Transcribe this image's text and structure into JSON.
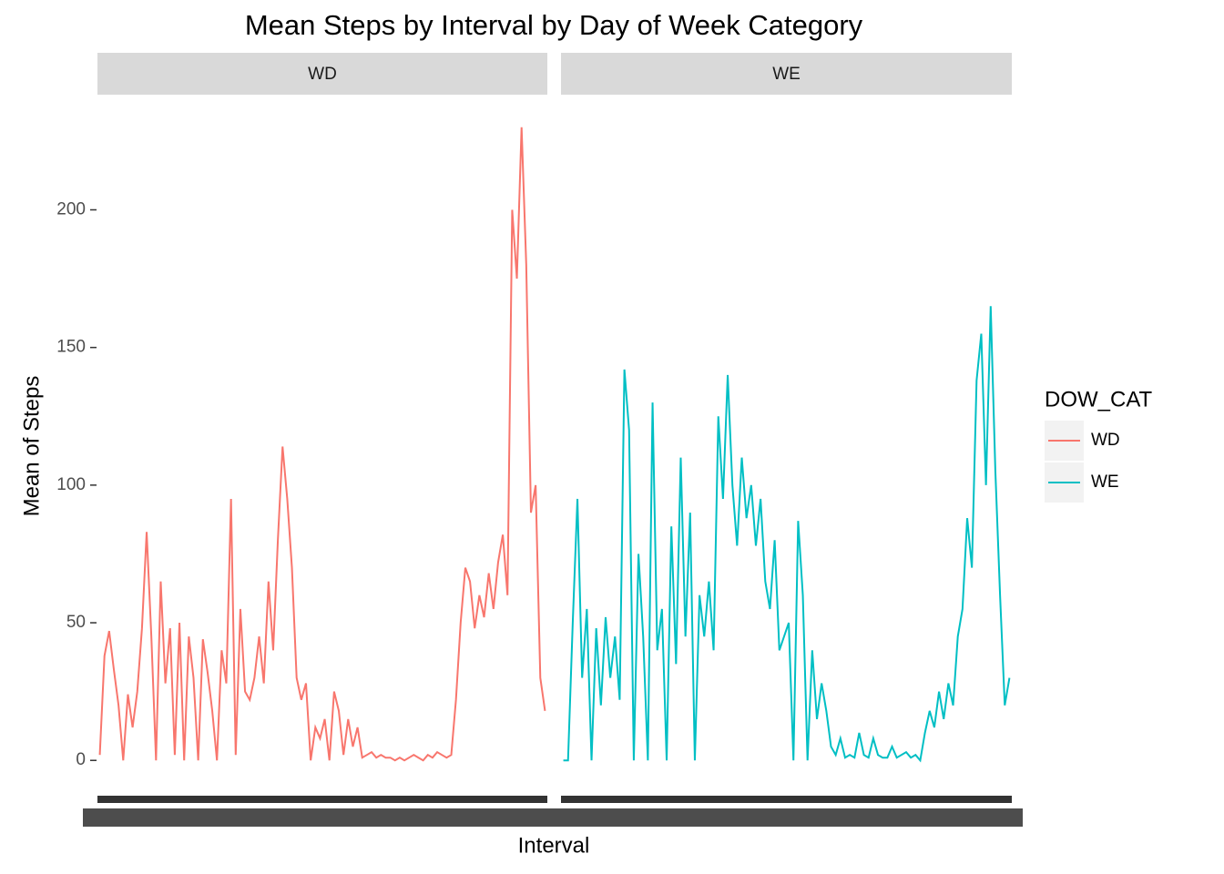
{
  "chart_data": {
    "type": "line",
    "title": "Mean Steps by Interval by Day of Week Category",
    "x_label": "Interval",
    "y_label": "Mean of Steps",
    "legend_title": "DOW_CAT",
    "legend_position": "right",
    "facet": true,
    "ylim": [
      -11.5,
      241.5
    ],
    "yticks": [
      0,
      50,
      100,
      150,
      200
    ],
    "series": [
      {
        "name": "WD",
        "color": "#F8766D",
        "values": [
          2,
          38,
          47,
          33,
          20,
          0,
          24,
          12,
          25,
          48,
          83,
          45,
          0,
          65,
          28,
          48,
          2,
          50,
          0,
          45,
          30,
          0,
          44,
          32,
          18,
          0,
          40,
          28,
          95,
          2,
          55,
          25,
          22,
          30,
          45,
          28,
          65,
          40,
          80,
          114,
          95,
          70,
          30,
          22,
          28,
          0,
          12,
          8,
          15,
          0,
          25,
          18,
          2,
          15,
          5,
          12,
          1,
          2,
          3,
          1,
          2,
          1,
          1,
          0,
          1,
          0,
          1,
          2,
          1,
          0,
          2,
          1,
          3,
          2,
          1,
          2,
          22,
          50,
          70,
          65,
          48,
          60,
          52,
          68,
          55,
          72,
          82,
          60,
          200,
          175,
          230,
          180,
          90,
          100,
          30,
          18
        ]
      },
      {
        "name": "WE",
        "color": "#00BFC4",
        "values": [
          0,
          0,
          50,
          95,
          30,
          55,
          0,
          48,
          20,
          52,
          30,
          45,
          22,
          142,
          120,
          0,
          75,
          45,
          0,
          130,
          40,
          55,
          0,
          85,
          35,
          110,
          45,
          90,
          0,
          60,
          45,
          65,
          40,
          125,
          95,
          140,
          100,
          78,
          110,
          88,
          100,
          78,
          95,
          65,
          55,
          80,
          40,
          45,
          50,
          0,
          87,
          60,
          0,
          40,
          15,
          28,
          18,
          5,
          2,
          8,
          1,
          2,
          1,
          10,
          2,
          1,
          8,
          2,
          1,
          1,
          5,
          1,
          2,
          3,
          1,
          2,
          0,
          10,
          18,
          12,
          25,
          15,
          28,
          20,
          45,
          55,
          88,
          70,
          138,
          155,
          100,
          165,
          105,
          60,
          20,
          30
        ]
      }
    ]
  }
}
